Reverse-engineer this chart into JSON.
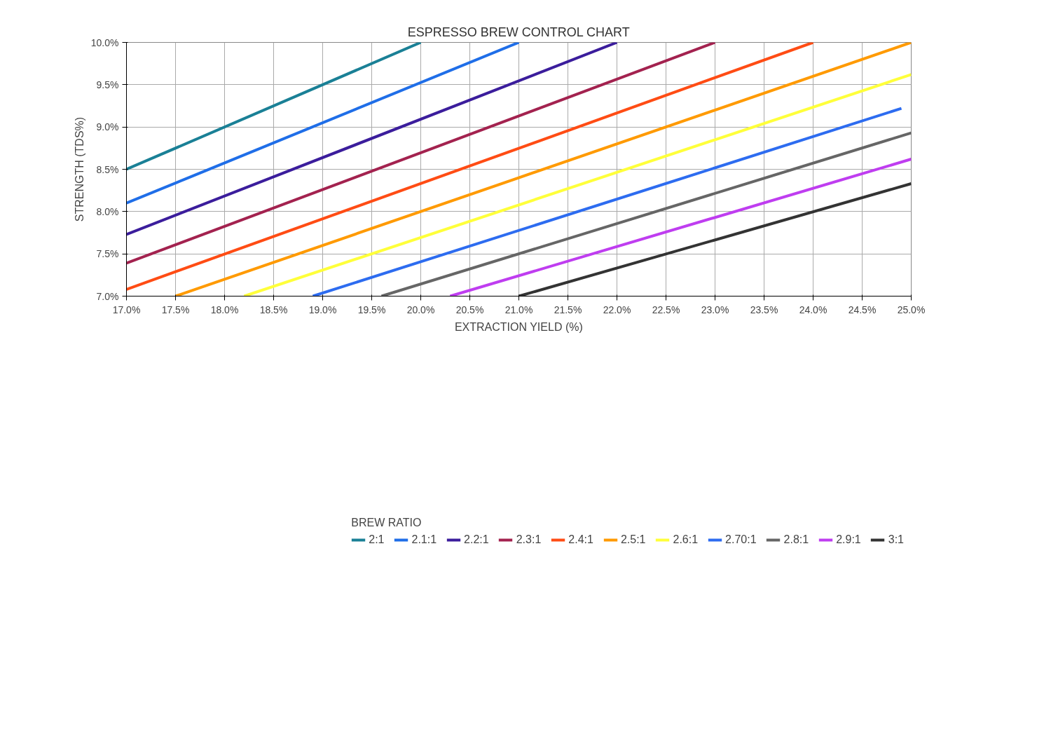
{
  "chart_data": {
    "type": "line",
    "title": "ESPRESSO BREW CONTROL CHART",
    "xlabel": "EXTRACTION YIELD (%)",
    "ylabel": "STRENGTH (TDS%)",
    "legend_title": "BREW RATIO",
    "legend": "bottom",
    "grid": true,
    "marker": "none",
    "line_style": "solid",
    "xlim": [
      17,
      25
    ],
    "ylim": [
      7,
      10
    ],
    "xticks": [
      {
        "value": 17,
        "label": "17.0%"
      },
      {
        "value": 17.5,
        "label": "17.5%"
      },
      {
        "value": 18,
        "label": "18.0%"
      },
      {
        "value": 18.5,
        "label": "18.5%"
      },
      {
        "value": 19,
        "label": "19.0%"
      },
      {
        "value": 19.5,
        "label": "19.5%"
      },
      {
        "value": 20,
        "label": "20.0%"
      },
      {
        "value": 20.5,
        "label": "20.5%"
      },
      {
        "value": 21,
        "label": "21.0%"
      },
      {
        "value": 21.5,
        "label": "21.5%"
      },
      {
        "value": 22,
        "label": "22.0%"
      },
      {
        "value": 22.5,
        "label": "22.5%"
      },
      {
        "value": 23,
        "label": "23.0%"
      },
      {
        "value": 23.5,
        "label": "23.5%"
      },
      {
        "value": 24,
        "label": "24.0%"
      },
      {
        "value": 24.5,
        "label": "24.5%"
      },
      {
        "value": 25,
        "label": "25.0%"
      }
    ],
    "yticks": [
      {
        "value": 7,
        "label": "7.0%"
      },
      {
        "value": 7.5,
        "label": "7.5%"
      },
      {
        "value": 8,
        "label": "8.0%"
      },
      {
        "value": 8.5,
        "label": "8.5%"
      },
      {
        "value": 9,
        "label": "9.0%"
      },
      {
        "value": 9.5,
        "label": "9.5%"
      },
      {
        "value": 10,
        "label": "10.0%"
      }
    ],
    "series": [
      {
        "name": "2:1",
        "color": "#1a8096",
        "x": [
          17,
          20
        ],
        "values": [
          8.5,
          10
        ]
      },
      {
        "name": "2.1:1",
        "color": "#1f6ee8",
        "x": [
          17,
          21
        ],
        "values": [
          8.1,
          10
        ]
      },
      {
        "name": "2.2:1",
        "color": "#3b1d9c",
        "x": [
          17,
          22
        ],
        "values": [
          7.73,
          10
        ]
      },
      {
        "name": "2.3:1",
        "color": "#a3224f",
        "x": [
          17,
          23
        ],
        "values": [
          7.39,
          10
        ]
      },
      {
        "name": "2.4:1",
        "color": "#ff4c14",
        "x": [
          17,
          24
        ],
        "values": [
          7.08,
          10
        ]
      },
      {
        "name": "2.5:1",
        "color": "#ff9a00",
        "x": [
          17.5,
          25
        ],
        "values": [
          7,
          10
        ]
      },
      {
        "name": "2.6:1",
        "color": "#ffff3a",
        "x": [
          18.2,
          25
        ],
        "values": [
          7,
          9.62
        ]
      },
      {
        "name": "2.70:1",
        "color": "#2d6cf0",
        "x": [
          18.9,
          24.9
        ],
        "values": [
          7,
          9.22
        ]
      },
      {
        "name": "2.8:1",
        "color": "#666666",
        "x": [
          19.6,
          25
        ],
        "values": [
          7,
          8.93
        ]
      },
      {
        "name": "2.9:1",
        "color": "#bf3df0",
        "x": [
          20.3,
          25
        ],
        "values": [
          7,
          8.62
        ]
      },
      {
        "name": "3:1",
        "color": "#333333",
        "x": [
          21,
          25
        ],
        "values": [
          7,
          8.33
        ]
      }
    ]
  }
}
